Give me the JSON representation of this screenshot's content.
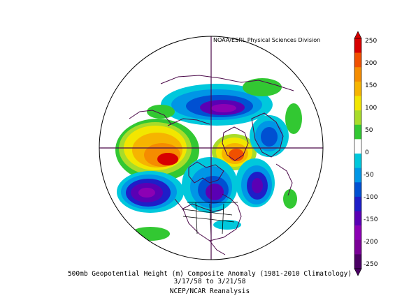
{
  "credit": "NOAA/ESRL Physical Sciences Division",
  "caption": {
    "line1": "500mb Geopotential Height (m) Composite Anomaly (1981-2010 Climatology)",
    "line2": "3/17/58  to 3/21/58",
    "line3": "NCEP/NCAR Reanalysis"
  },
  "colorbar": {
    "labels": [
      "250",
      "200",
      "150",
      "100",
      "50",
      "0",
      "-50",
      "-100",
      "-150",
      "-200",
      "-250"
    ],
    "colors": [
      "#d70000",
      "#f05000",
      "#f58c00",
      "#f6b400",
      "#f2e600",
      "#a8dc2a",
      "#32c832",
      "#ffffff",
      "#00c8dc",
      "#0096e6",
      "#0050d2",
      "#1e1ec8",
      "#5a00b4",
      "#8c00b4",
      "#7a0096",
      "#4b0064"
    ]
  },
  "colors": {
    "outline": "#000000",
    "coastline": "#4a0848",
    "grid": "#4a0848"
  }
}
